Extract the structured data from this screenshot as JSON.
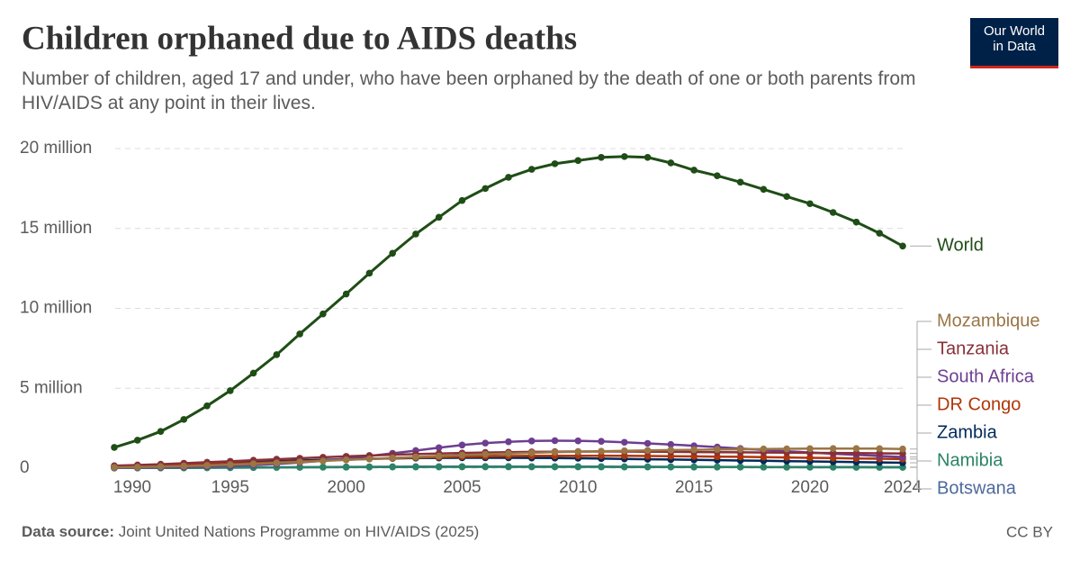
{
  "chart_data": {
    "type": "line",
    "title": "Children orphaned due to AIDS deaths",
    "subtitle": "Number of children, aged 17 and under, who have been orphaned by the death of one or both parents from HIV/AIDS at any point in their lives.",
    "source_label": "Data source:",
    "source": "Joint United Nations Programme on HIV/AIDS (2025)",
    "license": "CC BY",
    "logo": "Our World in Data",
    "x": [
      1990,
      1991,
      1992,
      1993,
      1994,
      1995,
      1996,
      1997,
      1998,
      1999,
      2000,
      2001,
      2002,
      2003,
      2004,
      2005,
      2006,
      2007,
      2008,
      2009,
      2010,
      2011,
      2012,
      2013,
      2014,
      2015,
      2016,
      2017,
      2018,
      2019,
      2020,
      2021,
      2022,
      2023,
      2024
    ],
    "xlim": [
      1990,
      2024
    ],
    "xticks": [
      1990,
      1995,
      2000,
      2005,
      2010,
      2015,
      2020,
      2024
    ],
    "ylim": [
      0,
      20000000
    ],
    "yticks": [
      {
        "value": 0,
        "label": "0"
      },
      {
        "value": 5000000,
        "label": "5 million"
      },
      {
        "value": 10000000,
        "label": "10 million"
      },
      {
        "value": 15000000,
        "label": "15 million"
      },
      {
        "value": 20000000,
        "label": "20 million"
      }
    ],
    "grid": true,
    "series": [
      {
        "name": "World",
        "color": "#1f4d16",
        "values": [
          1300000,
          1750000,
          2300000,
          3050000,
          3900000,
          4850000,
          5950000,
          7100000,
          8400000,
          9650000,
          10900000,
          12200000,
          13450000,
          14650000,
          15700000,
          16750000,
          17500000,
          18200000,
          18700000,
          19050000,
          19250000,
          19450000,
          19500000,
          19450000,
          19100000,
          18650000,
          18300000,
          17900000,
          17450000,
          17000000,
          16550000,
          16000000,
          15400000,
          14700000,
          13900000
        ]
      },
      {
        "name": "Mozambique",
        "color": "#9a7645",
        "values": [
          50000,
          70000,
          100000,
          130000,
          170000,
          220000,
          270000,
          330000,
          390000,
          450000,
          520000,
          580000,
          640000,
          700000,
          760000,
          820000,
          870000,
          920000,
          960000,
          1000000,
          1030000,
          1060000,
          1090000,
          1110000,
          1130000,
          1150000,
          1170000,
          1180000,
          1200000,
          1210000,
          1220000,
          1230000,
          1230000,
          1220000,
          1200000
        ]
      },
      {
        "name": "Tanzania",
        "color": "#883039",
        "values": [
          150000,
          200000,
          250000,
          310000,
          370000,
          430000,
          500000,
          560000,
          620000,
          680000,
          740000,
          790000,
          840000,
          880000,
          920000,
          950000,
          980000,
          1000000,
          1020000,
          1030000,
          1040000,
          1040000,
          1040000,
          1030000,
          1020000,
          1010000,
          1000000,
          990000,
          980000,
          970000,
          960000,
          950000,
          940000,
          930000,
          920000
        ]
      },
      {
        "name": "South Africa",
        "color": "#6d3e91",
        "values": [
          30000,
          40000,
          50000,
          70000,
          100000,
          140000,
          190000,
          260000,
          350000,
          460000,
          600000,
          760000,
          930000,
          1100000,
          1280000,
          1450000,
          1570000,
          1650000,
          1700000,
          1720000,
          1710000,
          1680000,
          1620000,
          1550000,
          1480000,
          1400000,
          1320000,
          1230000,
          1140000,
          1060000,
          980000,
          900000,
          830000,
          760000,
          700000
        ]
      },
      {
        "name": "DR Congo",
        "color": "#b13507",
        "values": [
          100000,
          130000,
          160000,
          200000,
          240000,
          280000,
          330000,
          380000,
          430000,
          480000,
          530000,
          580000,
          620000,
          660000,
          690000,
          720000,
          740000,
          760000,
          770000,
          780000,
          780000,
          780000,
          770000,
          760000,
          750000,
          740000,
          720000,
          710000,
          690000,
          670000,
          650000,
          630000,
          610000,
          590000,
          570000
        ]
      },
      {
        "name": "Zambia",
        "color": "#00295b",
        "values": [
          100000,
          140000,
          180000,
          230000,
          280000,
          330000,
          380000,
          430000,
          480000,
          520000,
          560000,
          590000,
          610000,
          630000,
          640000,
          650000,
          650000,
          650000,
          640000,
          630000,
          620000,
          600000,
          580000,
          560000,
          540000,
          520000,
          500000,
          480000,
          460000,
          440000,
          420000,
          400000,
          380000,
          360000,
          340000
        ]
      },
      {
        "name": "Namibia",
        "color": "#2c8465",
        "values": [
          10000,
          12000,
          15000,
          19000,
          24000,
          30000,
          36000,
          43000,
          50000,
          57000,
          63000,
          68000,
          72000,
          75000,
          77000,
          79000,
          80000,
          80000,
          80000,
          79000,
          78000,
          77000,
          75000,
          73000,
          71000,
          69000,
          67000,
          65000,
          63000,
          61000,
          59000,
          57000,
          55000,
          53000,
          51000
        ]
      },
      {
        "name": "Botswana",
        "color": "#4c6a9c",
        "values": [
          10000,
          14000,
          19000,
          25000,
          32000,
          40000,
          48000,
          56000,
          64000,
          72000,
          79000,
          85000,
          90000,
          94000,
          97000,
          99000,
          100000,
          100000,
          99000,
          97000,
          95000,
          93000,
          91000,
          88000,
          86000,
          83000,
          81000,
          78000,
          76000,
          73000,
          71000,
          68000,
          66000,
          63000,
          61000
        ]
      }
    ]
  }
}
